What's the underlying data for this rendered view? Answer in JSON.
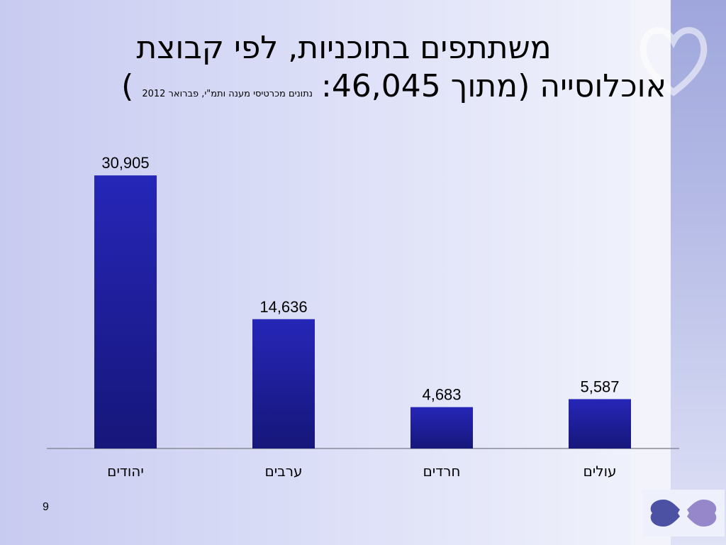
{
  "slide": {
    "title_line1": "משתתפים בתוכניות, לפי קבוצת",
    "title_line2_main": "אוכלוסייה (מתוך 46,045:",
    "title_line2_note": "נתונים מכרטיסי מענה ותמ\"י, פברואר 2012",
    "title_line2_close": ")",
    "page_number": "9"
  },
  "colors": {
    "bar_top": "#2626b8",
    "bar_bottom": "#16167a",
    "axis": "#8a8a9a",
    "accent_strip": "#9fa6dc"
  },
  "chart_data": {
    "type": "bar",
    "categories": [
      "יהודים",
      "ערבים",
      "חרדים",
      "עולים"
    ],
    "values": [
      30905,
      14636,
      4683,
      5587
    ],
    "value_labels": [
      "30,905",
      "14,636",
      "4,683",
      "5,587"
    ],
    "ylim": [
      0,
      31000
    ],
    "grid": false,
    "legend": "none"
  }
}
